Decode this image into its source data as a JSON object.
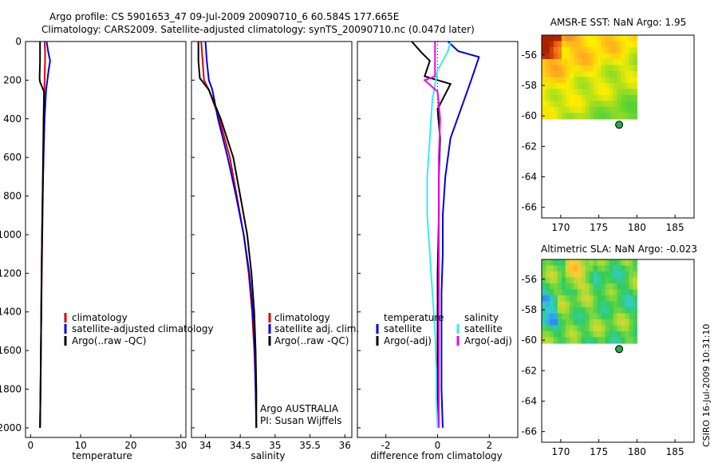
{
  "header": {
    "title_line1": "Argo profile: CS 5901653_47 09-Jul-2009 20090710_6 60.584S 177.665E",
    "title_line2": "Climatology: CARS2009. Satellite-adjusted climatology: synTS_20090710.nc (0.047d later)"
  },
  "footer": {
    "stamp": "CSIRO 16-Jul-2009 10:31:10"
  },
  "colors": {
    "climatology": "#dd0000",
    "satellite": "#0000dd",
    "argo": "#000000",
    "sal_satellite": "#33eeee",
    "sal_argo": "#ee00ee"
  },
  "chart_data": [
    {
      "type": "line",
      "xlabel": "temperature",
      "xlim": [
        -1,
        31
      ],
      "ylim": [
        2050,
        0
      ],
      "y_reversed": true,
      "xticks": [
        0,
        10,
        20,
        30
      ],
      "yticks": [
        0,
        200,
        400,
        600,
        800,
        1000,
        1200,
        1400,
        1600,
        1800,
        2000
      ],
      "legend": [
        "climatology",
        "satellite-adjusted climatology",
        "Argo(..raw -QC)"
      ],
      "series": [
        {
          "name": "climatology",
          "color": "#dd0000",
          "x": [
            2.8,
            2.9,
            2.9,
            2.8,
            2.7,
            2.6,
            2.5,
            2.4,
            2.3,
            2.2,
            2.1,
            2.0,
            1.9
          ],
          "y": [
            0,
            50,
            100,
            200,
            300,
            500,
            700,
            900,
            1100,
            1300,
            1500,
            1800,
            2000
          ]
        },
        {
          "name": "satellite-adjusted climatology",
          "color": "#0000dd",
          "x": [
            3.2,
            3.5,
            3.9,
            3.6,
            3.1,
            2.8,
            2.6,
            2.4,
            2.3,
            2.2,
            2.1,
            2.0,
            1.9
          ],
          "y": [
            0,
            50,
            100,
            150,
            250,
            400,
            600,
            800,
            1000,
            1200,
            1500,
            1800,
            2000
          ]
        },
        {
          "name": "Argo(..raw -QC)",
          "color": "#000000",
          "x": [
            1.9,
            1.9,
            1.8,
            1.9,
            2.7,
            2.6,
            2.5,
            2.4,
            2.3,
            2.2,
            2.1,
            2.0,
            1.9
          ],
          "y": [
            0,
            100,
            190,
            210,
            260,
            400,
            600,
            800,
            1000,
            1200,
            1500,
            1800,
            2000
          ]
        }
      ]
    },
    {
      "type": "line",
      "xlabel": "salinity",
      "xlim": [
        33.8,
        36.1
      ],
      "ylim": [
        2050,
        0
      ],
      "y_reversed": true,
      "xticks": [
        34,
        34.5,
        35,
        35.5,
        36
      ],
      "legend": [
        "climatology",
        "satellite adj. clim.",
        "Argo(..raw -QC)"
      ],
      "annotation": [
        "Argo AUSTRALIA",
        "PI: Susan Wijffels"
      ],
      "series": [
        {
          "name": "climatology",
          "color": "#dd0000",
          "x": [
            33.94,
            33.96,
            33.98,
            34.05,
            34.2,
            34.35,
            34.45,
            34.55,
            34.62,
            34.67,
            34.7,
            34.72,
            34.73
          ],
          "y": [
            0,
            100,
            200,
            250,
            400,
            600,
            800,
            1000,
            1200,
            1400,
            1600,
            1800,
            2000
          ]
        },
        {
          "name": "satellite adj. clim.",
          "color": "#0000dd",
          "x": [
            34.0,
            34.02,
            34.05,
            34.1,
            34.18,
            34.32,
            34.44,
            34.55,
            34.63,
            34.68,
            34.71,
            34.72,
            34.73
          ],
          "y": [
            0,
            100,
            200,
            250,
            400,
            600,
            800,
            1000,
            1200,
            1400,
            1600,
            1800,
            2000
          ]
        },
        {
          "name": "Argo(..raw -QC)",
          "color": "#000000",
          "x": [
            33.9,
            33.9,
            33.92,
            34.05,
            34.22,
            34.4,
            34.5,
            34.6,
            34.66,
            34.7,
            34.72,
            34.73,
            34.73
          ],
          "y": [
            0,
            100,
            190,
            250,
            400,
            600,
            800,
            1000,
            1200,
            1400,
            1600,
            1800,
            2000
          ]
        }
      ]
    },
    {
      "type": "line",
      "xlabel": "difference from climatology",
      "xlim": [
        -3.1,
        3.1
      ],
      "ylim": [
        2050,
        0
      ],
      "y_reversed": true,
      "xticks": [
        -2,
        0,
        2
      ],
      "legend_columns": [
        {
          "heading": "temperature",
          "items": [
            "satellite",
            "Argo(-adj)"
          ]
        },
        {
          "heading": "salinity",
          "items": [
            "satellite",
            "Argo(-adj)"
          ]
        }
      ],
      "series": [
        {
          "name": "temperature satellite",
          "color": "#0000dd",
          "x": [
            0.4,
            0.8,
            1.6,
            1.3,
            0.9,
            0.5,
            0.3,
            0.2,
            0.2,
            0.15,
            0.15,
            0.15,
            0.2
          ],
          "y": [
            0,
            50,
            80,
            200,
            350,
            500,
            700,
            900,
            1100,
            1300,
            1500,
            1800,
            2000
          ]
        },
        {
          "name": "temperature Argo(-adj)",
          "color": "#000000",
          "x": [
            -1.0,
            -0.6,
            -0.3,
            -0.5,
            0.5,
            0.0,
            0.1,
            0.05,
            0.05,
            0.0,
            0.0,
            0.0,
            0.0
          ],
          "y": [
            0,
            60,
            100,
            180,
            220,
            350,
            500,
            700,
            900,
            1200,
            1500,
            1800,
            2000
          ]
        },
        {
          "name": "salinity satellite",
          "color": "#33eeee",
          "x": [
            0.5,
            0.4,
            0.0,
            -0.2,
            -0.3,
            -0.4,
            -0.4,
            -0.3,
            -0.2,
            -0.1,
            -0.05,
            -0.05,
            0.0
          ],
          "y": [
            0,
            50,
            150,
            300,
            500,
            700,
            900,
            1100,
            1300,
            1500,
            1700,
            1850,
            2000
          ]
        },
        {
          "name": "salinity Argo(-adj)",
          "color": "#ee00ee",
          "x": [
            -0.1,
            -0.1,
            -0.1,
            -0.5,
            0.0,
            0.1,
            0.05,
            0.05,
            0.05,
            0.05,
            0.05,
            0.05,
            0.05
          ],
          "y": [
            0,
            100,
            180,
            200,
            260,
            400,
            600,
            800,
            1000,
            1200,
            1500,
            1800,
            2000
          ]
        }
      ]
    },
    {
      "type": "heatmap",
      "title": "AMSR-E SST: NaN Argo: 1.95",
      "xlim": [
        167.5,
        187.5
      ],
      "ylim": [
        -66.7,
        -54.7
      ],
      "xticks": [
        170,
        175,
        180,
        185
      ],
      "yticks": [
        -56,
        -58,
        -60,
        -62,
        -64,
        -66
      ],
      "data_extent": {
        "x": [
          167.5,
          180
        ],
        "y": [
          -60.2,
          -54.7
        ]
      },
      "marker": {
        "lon": 177.665,
        "lat": -60.584,
        "color": "#22aa44"
      }
    },
    {
      "type": "heatmap",
      "title": "Altimetric SLA: NaN Argo: -0.023",
      "xlim": [
        167.5,
        187.5
      ],
      "ylim": [
        -66.7,
        -54.7
      ],
      "xticks": [
        170,
        175,
        180,
        185
      ],
      "yticks": [
        -56,
        -58,
        -60,
        -62,
        -64,
        -66
      ],
      "data_extent": {
        "x": [
          167.5,
          180
        ],
        "y": [
          -60.2,
          -54.7
        ]
      },
      "marker": {
        "lon": 177.665,
        "lat": -60.584,
        "color": "#22aa44"
      }
    }
  ]
}
